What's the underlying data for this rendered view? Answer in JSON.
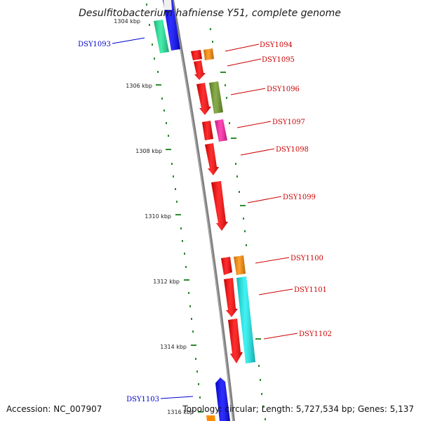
{
  "title": "Desulfitobacterium hafniense Y51, complete genome",
  "accession": "Accession: NC_007907",
  "summary": "Topology: circular; Length: 5,727,534 bp; Genes: 5,137",
  "colors": {
    "backbone": "#808080",
    "tick": "#1f7a1f",
    "label_red": "#cc0000",
    "label_blue": "#0000cc"
  },
  "kbp_ticks": [
    "1304 kbp",
    "1306 kbp",
    "1308 kbp",
    "1310 kbp",
    "1312 kbp",
    "1314 kbp",
    "1316 kbp"
  ],
  "gene_labels": [
    "DSY1093",
    "DSY1094",
    "DSY1095",
    "DSY1096",
    "DSY1097",
    "DSY1098",
    "DSY1099",
    "DSY1100",
    "DSY1101",
    "DSY1102",
    "DSY1103"
  ]
}
